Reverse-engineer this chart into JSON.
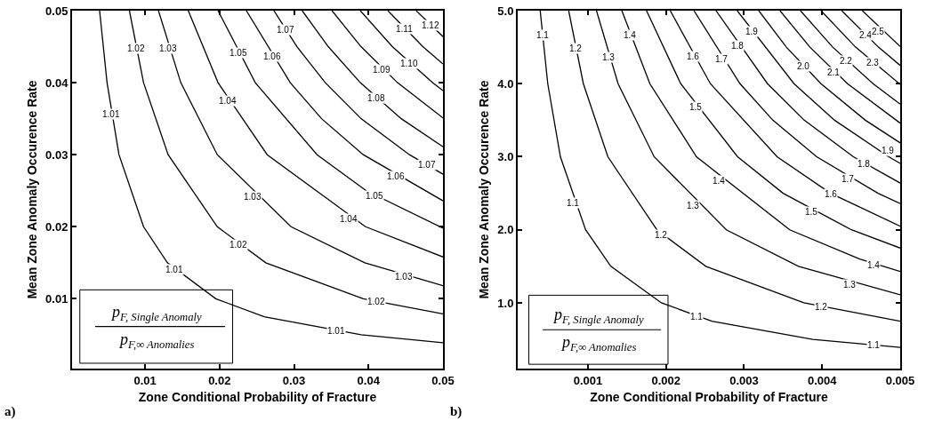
{
  "chart_data": [
    {
      "type": "line",
      "title": "a)",
      "xlabel": "Zone Conditional Probability of Fracture",
      "ylabel": "Mean Zone Anomaly Occurence Rate",
      "xlim": [
        0.0002,
        0.05
      ],
      "ylim": [
        0.0003,
        0.05
      ],
      "xticks": [
        0.01,
        0.02,
        0.03,
        0.04,
        0.05
      ],
      "yticks": [
        0.01,
        0.02,
        0.03,
        0.04,
        0.05
      ],
      "series": [
        {
          "color": "#000000",
          "x": [
            0.0039,
            0.0049,
            0.0065,
            0.0098,
            0.013,
            0.0195,
            0.026,
            0.039,
            0.05
          ],
          "values": [
            0.05,
            0.04,
            0.03,
            0.02,
            0.015,
            0.01,
            0.0075,
            0.005,
            0.0039
          ]
        },
        {
          "color": "#000000",
          "x": [
            0.0079,
            0.0098,
            0.0131,
            0.0197,
            0.0262,
            0.0393,
            0.05
          ],
          "values": [
            0.05,
            0.04,
            0.03,
            0.02,
            0.015,
            0.01,
            0.0079
          ]
        },
        {
          "color": "#000000",
          "x": [
            0.0118,
            0.0148,
            0.0197,
            0.0296,
            0.0395,
            0.05
          ],
          "values": [
            0.05,
            0.04,
            0.03,
            0.02,
            0.015,
            0.0118
          ]
        },
        {
          "color": "#000000",
          "x": [
            0.0158,
            0.0198,
            0.0264,
            0.0396,
            0.05
          ],
          "values": [
            0.05,
            0.04,
            0.03,
            0.02,
            0.0158
          ]
        },
        {
          "color": "#000000",
          "x": [
            0.0198,
            0.0248,
            0.0331,
            0.0397,
            0.05
          ],
          "values": [
            0.05,
            0.04,
            0.03,
            0.025,
            0.0198
          ]
        },
        {
          "color": "#000000",
          "x": [
            0.0236,
            0.0295,
            0.0337,
            0.0393,
            0.05
          ],
          "values": [
            0.05,
            0.04,
            0.035,
            0.03,
            0.0236
          ]
        },
        {
          "color": "#000000",
          "x": [
            0.0273,
            0.0304,
            0.0342,
            0.039,
            0.0455,
            0.05
          ],
          "values": [
            0.05,
            0.045,
            0.04,
            0.035,
            0.03,
            0.0273
          ]
        },
        {
          "color": "#000000",
          "x": [
            0.0311,
            0.0346,
            0.0389,
            0.0444,
            0.05
          ],
          "values": [
            0.05,
            0.045,
            0.04,
            0.035,
            0.0311
          ]
        },
        {
          "color": "#000000",
          "x": [
            0.0351,
            0.039,
            0.0439,
            0.05
          ],
          "values": [
            0.05,
            0.045,
            0.04,
            0.0351
          ]
        },
        {
          "color": "#000000",
          "x": [
            0.0389,
            0.0432,
            0.0486,
            0.05
          ],
          "values": [
            0.05,
            0.045,
            0.04,
            0.0389
          ]
        },
        {
          "color": "#000000",
          "x": [
            0.0426,
            0.0473,
            0.05
          ],
          "values": [
            0.05,
            0.045,
            0.0426
          ]
        },
        {
          "color": "#000000",
          "x": [
            0.0464,
            0.05
          ],
          "values": [
            0.05,
            0.0464
          ]
        }
      ],
      "annotations": [
        "p$_{F, Single Anomaly}$",
        "p$_{F,∞ Anomalies}$",
        {
          "text": "1.01",
          "x": 0.0055,
          "y": 0.0356
        },
        {
          "text": "1.02",
          "x": 0.0088,
          "y": 0.0447
        },
        {
          "text": "1.03",
          "x": 0.0131,
          "y": 0.0447
        },
        {
          "text": "1.04",
          "x": 0.0211,
          "y": 0.0375
        },
        {
          "text": "1.05",
          "x": 0.0225,
          "y": 0.0441
        },
        {
          "text": "1.06",
          "x": 0.0271,
          "y": 0.0436
        },
        {
          "text": "1.07",
          "x": 0.0289,
          "y": 0.0473
        },
        {
          "text": "1.08",
          "x": 0.0411,
          "y": 0.0378
        },
        {
          "text": "1.09",
          "x": 0.0418,
          "y": 0.0418
        },
        {
          "text": "1.10",
          "x": 0.0455,
          "y": 0.0427
        },
        {
          "text": "1.11",
          "x": 0.0448,
          "y": 0.0475
        },
        {
          "text": "1.12",
          "x": 0.0483,
          "y": 0.048
        },
        {
          "text": "1.01",
          "x": 0.0139,
          "y": 0.014
        },
        {
          "text": "1.01",
          "x": 0.0357,
          "y": 0.0055
        },
        {
          "text": "1.02",
          "x": 0.0225,
          "y": 0.0175
        },
        {
          "text": "1.02",
          "x": 0.041,
          "y": 0.0096
        },
        {
          "text": "1.03",
          "x": 0.0244,
          "y": 0.0242
        },
        {
          "text": "1.03",
          "x": 0.0448,
          "y": 0.0131
        },
        {
          "text": "1.04",
          "x": 0.0374,
          "y": 0.0211
        },
        {
          "text": "1.05",
          "x": 0.0408,
          "y": 0.0243
        },
        {
          "text": "1.06",
          "x": 0.0437,
          "y": 0.027
        },
        {
          "text": "1.07",
          "x": 0.0478,
          "y": 0.0286
        }
      ]
    },
    {
      "type": "line",
      "title": "b)",
      "xlabel": "Zone Conditional Probability of Fracture",
      "ylabel": "Mean Zone Anomaly Occurence Rate",
      "xlim": [
        0.0001,
        0.005
      ],
      "ylim": [
        0.1,
        5
      ],
      "xticks": [
        0.001,
        0.002,
        0.003,
        0.004,
        0.005
      ],
      "yticks": [
        {
          "value": 1,
          "label": "1.0"
        },
        {
          "value": 2,
          "label": "2.0"
        },
        {
          "value": 3,
          "label": "3.0"
        },
        {
          "value": 4,
          "label": "4.0"
        },
        {
          "value": 5,
          "label": "5.0"
        }
      ],
      "series": [
        {
          "color": "#000000",
          "x": [
            0.000388,
            0.000485,
            0.000647,
            0.00097,
            0.001293,
            0.00194,
            0.002587,
            0.00388,
            0.005
          ],
          "values": [
            5,
            4,
            3,
            2,
            1.5,
            1,
            0.75,
            0.5,
            0.39
          ]
        },
        {
          "color": "#000000",
          "x": [
            0.000753,
            0.000941,
            0.001255,
            0.001883,
            0.00251,
            0.003765,
            0.005
          ],
          "values": [
            5,
            4,
            3,
            2,
            1.5,
            1,
            0.75
          ]
        },
        {
          "color": "#000000",
          "x": [
            0.001109,
            0.001386,
            0.001848,
            0.002773,
            0.003697,
            0.005
          ],
          "values": [
            5,
            4,
            3,
            2,
            1.5,
            1.11
          ]
        },
        {
          "color": "#000000",
          "x": [
            0.001434,
            0.001793,
            0.00239,
            0.003585,
            0.004481,
            0.005
          ],
          "values": [
            5,
            4,
            3,
            2,
            1.6,
            1.43
          ]
        },
        {
          "color": "#000000",
          "x": [
            0.00175,
            0.002188,
            0.002917,
            0.0035,
            0.004375,
            0.005
          ],
          "values": [
            5,
            4,
            3,
            2.5,
            2,
            1.75
          ]
        },
        {
          "color": "#000000",
          "x": [
            0.002054,
            0.002568,
            0.003423,
            0.004108,
            0.005
          ],
          "values": [
            5,
            4,
            3,
            2.5,
            2.05
          ]
        },
        {
          "color": "#000000",
          "x": [
            0.002358,
            0.002948,
            0.003369,
            0.00393,
            0.004716,
            0.005
          ],
          "values": [
            5,
            4,
            3.5,
            3,
            2.5,
            2.36
          ]
        },
        {
          "color": "#000000",
          "x": [
            0.00264,
            0.0033,
            0.003771,
            0.0044,
            0.005
          ],
          "values": [
            5,
            4,
            3.5,
            3,
            2.64
          ]
        },
        {
          "color": "#000000",
          "x": [
            0.002912,
            0.00364,
            0.00416,
            0.004853,
            0.005
          ],
          "values": [
            5,
            4,
            3.5,
            3,
            2.91
          ]
        },
        {
          "color": "#000000",
          "x": [
            0.003188,
            0.003542,
            0.003985,
            0.004554,
            0.005
          ],
          "values": [
            5,
            4.5,
            4,
            3.5,
            3.19
          ]
        },
        {
          "color": "#000000",
          "x": [
            0.00346,
            0.003844,
            0.004325,
            0.005
          ],
          "values": [
            5,
            4.5,
            4,
            3.46
          ]
        },
        {
          "color": "#000000",
          "x": [
            0.003722,
            0.004136,
            0.004653,
            0.005
          ],
          "values": [
            5,
            4.5,
            4,
            3.72
          ]
        },
        {
          "color": "#000000",
          "x": [
            0.003986,
            0.004429,
            0.005
          ],
          "values": [
            5,
            4.5,
            3.99
          ]
        },
        {
          "color": "#000000",
          "x": [
            0.00425,
            0.004722,
            0.005
          ],
          "values": [
            5,
            4.5,
            4.25
          ]
        },
        {
          "color": "#000000",
          "x": [
            0.004514,
            0.005
          ],
          "values": [
            5,
            4.51
          ]
        }
      ],
      "annotations": [
        "p$_{F, Single Anomaly}$",
        "p$_{F,∞ Anomalies}$",
        {
          "text": "1.1",
          "x": 0.00042,
          "y": 4.67
        },
        {
          "text": "1.2",
          "x": 0.00084,
          "y": 4.48
        },
        {
          "text": "1.3",
          "x": 0.00126,
          "y": 4.36
        },
        {
          "text": "1.4",
          "x": 0.001535,
          "y": 4.67
        },
        {
          "text": "1.5",
          "x": 0.00238,
          "y": 3.68
        },
        {
          "text": "1.6",
          "x": 0.00235,
          "y": 4.37
        },
        {
          "text": "1.7",
          "x": 0.00271,
          "y": 4.34
        },
        {
          "text": "1.8",
          "x": 0.002913,
          "y": 4.52
        },
        {
          "text": "1.9",
          "x": 0.003095,
          "y": 4.72
        },
        {
          "text": "2.0",
          "x": 0.00376,
          "y": 4.24
        },
        {
          "text": "2.1",
          "x": 0.00415,
          "y": 4.15
        },
        {
          "text": "2.2",
          "x": 0.004302,
          "y": 4.31
        },
        {
          "text": "2.3",
          "x": 0.00465,
          "y": 4.29
        },
        {
          "text": "2.4",
          "x": 0.00455,
          "y": 4.67
        },
        {
          "text": "2.5",
          "x": 0.004716,
          "y": 4.72
        },
        {
          "text": "1.1",
          "x": 0.000805,
          "y": 2.37
        },
        {
          "text": "1.1",
          "x": 0.002386,
          "y": 0.81
        },
        {
          "text": "1.1",
          "x": 0.004655,
          "y": 0.42
        },
        {
          "text": "1.2",
          "x": 0.00194,
          "y": 1.93
        },
        {
          "text": "1.2",
          "x": 0.003987,
          "y": 0.94
        },
        {
          "text": "1.3",
          "x": 0.002345,
          "y": 2.33
        },
        {
          "text": "1.3",
          "x": 0.004352,
          "y": 1.25
        },
        {
          "text": "1.4",
          "x": 0.00267,
          "y": 2.67
        },
        {
          "text": "1.4",
          "x": 0.004655,
          "y": 1.52
        },
        {
          "text": "1.5",
          "x": 0.003865,
          "y": 2.25
        },
        {
          "text": "1.6",
          "x": 0.004108,
          "y": 2.49
        },
        {
          "text": "1.7",
          "x": 0.004331,
          "y": 2.7
        },
        {
          "text": "1.8",
          "x": 0.004534,
          "y": 2.9
        },
        {
          "text": "1.9",
          "x": 0.004838,
          "y": 3.08
        }
      ]
    }
  ]
}
